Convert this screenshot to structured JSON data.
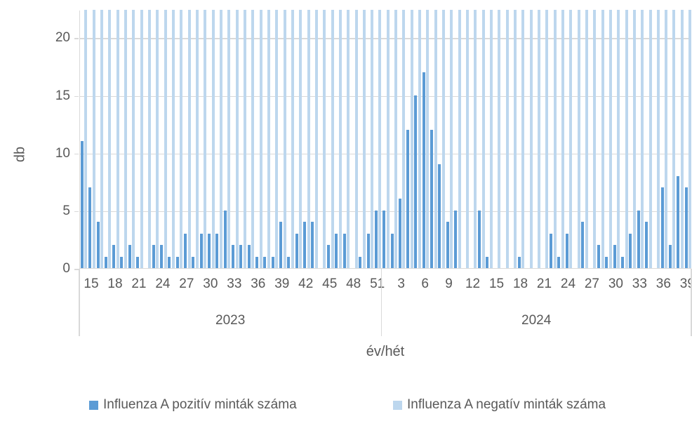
{
  "chart_data": {
    "type": "bar",
    "title": "",
    "ylabel": "db",
    "xlabel": "év/hét",
    "y_ticks": [
      0,
      5,
      10,
      15,
      20
    ],
    "y_axis_visible_max": 22.4,
    "grid": true,
    "legend_position": "bottom",
    "series_names": [
      "Influenza A pozitív minták száma",
      "Influenza A negatív minták száma"
    ],
    "negative_series_note": "Every week has a light-blue negative bar that extends above the visible plot area (clipped at the top edge of the chart).",
    "groups": [
      {
        "year_label": "2023",
        "weeks": [
          14,
          15,
          16,
          17,
          18,
          19,
          20,
          21,
          22,
          23,
          24,
          25,
          26,
          27,
          28,
          29,
          30,
          31,
          32,
          33,
          34,
          35,
          36,
          37,
          38,
          39,
          40,
          41,
          42,
          43,
          44,
          45,
          46,
          47,
          48,
          49,
          50,
          51
        ],
        "week_tick_labels": [
          15,
          18,
          21,
          24,
          27,
          30,
          33,
          36,
          39,
          42,
          45,
          48,
          51
        ],
        "positive_counts": [
          11,
          7,
          4,
          1,
          2,
          1,
          2,
          1,
          0,
          2,
          2,
          1,
          1,
          3,
          1,
          3,
          3,
          3,
          5,
          2,
          2,
          2,
          1,
          1,
          1,
          4,
          1,
          3,
          4,
          4,
          0,
          2,
          3,
          3,
          0,
          1,
          3,
          5
        ]
      },
      {
        "year_label": "2024",
        "weeks": [
          1,
          2,
          3,
          4,
          5,
          6,
          7,
          8,
          9,
          10,
          11,
          12,
          13,
          14,
          15,
          16,
          17,
          18,
          19,
          20,
          21,
          22,
          23,
          24,
          25,
          26,
          27,
          28,
          29,
          30,
          31,
          32,
          33,
          34,
          35,
          36,
          37,
          38,
          39
        ],
        "week_tick_labels": [
          3,
          6,
          9,
          12,
          15,
          18,
          21,
          24,
          27,
          30,
          33,
          36,
          39
        ],
        "positive_counts": [
          5,
          3,
          6,
          12,
          15,
          17,
          12,
          9,
          4,
          5,
          0,
          0,
          5,
          1,
          0,
          0,
          0,
          1,
          0,
          0,
          0,
          3,
          1,
          3,
          0,
          4,
          0,
          2,
          1,
          2,
          1,
          3,
          5,
          4,
          0,
          7,
          2,
          8,
          7
        ]
      }
    ],
    "colors": {
      "positive": "#5B9BD5",
      "negative": "#BDD7EE",
      "gridline": "#D9D9D9",
      "axis_line": "#D9D9D9",
      "text": "#595959",
      "background": "#FFFFFF"
    }
  },
  "axes": {
    "y_title": "db",
    "x_title": "év/hét",
    "y_tick_labels": [
      "0",
      "5",
      "10",
      "15",
      "20"
    ],
    "year_labels": [
      "2023",
      "2024"
    ]
  },
  "legend": {
    "items": [
      {
        "label": "Influenza A pozitív minták száma",
        "color": "#5B9BD5"
      },
      {
        "label": "Influenza A negatív minták száma",
        "color": "#BDD7EE"
      }
    ]
  }
}
